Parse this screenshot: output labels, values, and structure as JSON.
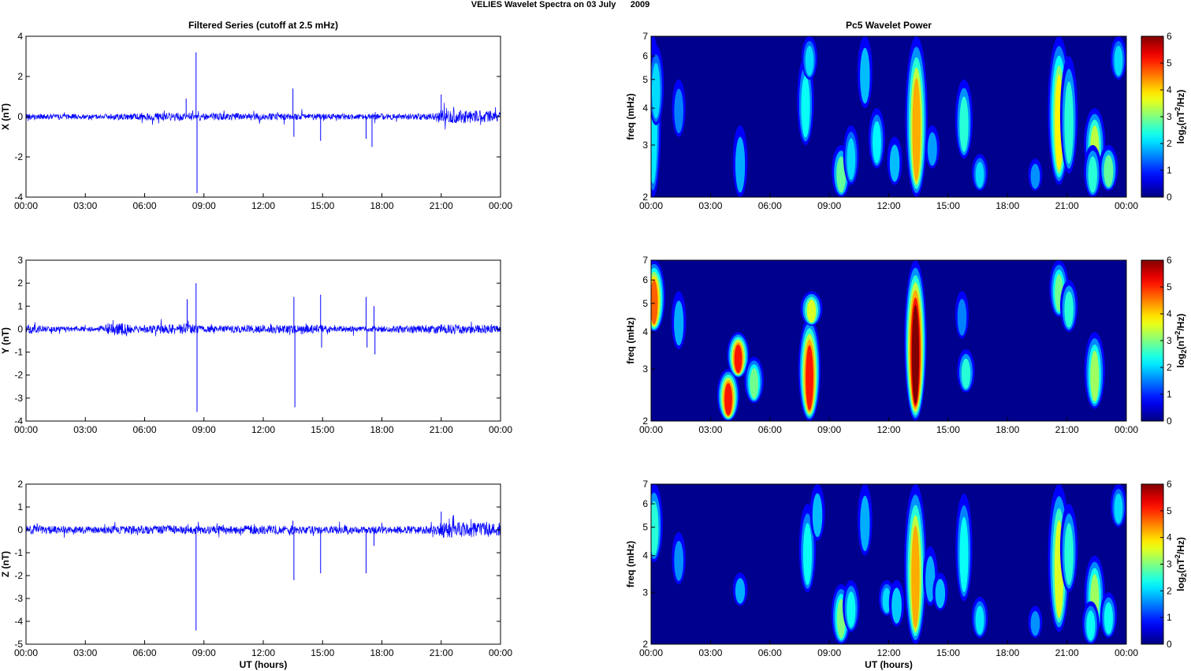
{
  "figure": {
    "suptitle": "VELIES Wavelet Spectra on 03 July      2009"
  },
  "colors": {
    "trace": "#0000ff",
    "axis": "#000000",
    "background": "#ffffff",
    "spectrogram_bg": "#00008f"
  },
  "chart_data": [
    {
      "id": "x-series",
      "type": "line",
      "title": "Filtered Series (cutoff at 2.5 mHz)",
      "xlabel": "",
      "ylabel": "X (nT)",
      "xticks": [
        "00:00",
        "03:00",
        "06:00",
        "09:00",
        "12:00",
        "15:00",
        "18:00",
        "21:00",
        "00:00"
      ],
      "xlim": [
        0,
        24
      ],
      "ylim": [
        -4,
        4
      ],
      "yticks": [
        "4",
        "2",
        "0",
        "-2",
        "-4"
      ],
      "noise": [
        [
          0,
          0.15
        ],
        [
          3.5,
          0.12
        ],
        [
          7,
          0.2
        ],
        [
          9,
          0.18
        ],
        [
          13,
          0.17
        ],
        [
          17,
          0.14
        ],
        [
          20.5,
          0.16
        ],
        [
          21,
          0.35
        ],
        [
          24,
          0.3
        ]
      ],
      "spikes": [
        [
          8.1,
          0.9
        ],
        [
          8.6,
          3.2
        ],
        [
          8.65,
          -3.8
        ],
        [
          13.5,
          1.4
        ],
        [
          13.55,
          -1.0
        ],
        [
          14.9,
          -1.2
        ],
        [
          17.2,
          -1.1
        ],
        [
          17.5,
          -1.5
        ],
        [
          21,
          1.1
        ],
        [
          24,
          -1.1
        ]
      ]
    },
    {
      "id": "y-series",
      "type": "line",
      "title": "",
      "xlabel": "",
      "ylabel": "Y (nT)",
      "xticks": [
        "00:00",
        "03:00",
        "06:00",
        "09:00",
        "12:00",
        "15:00",
        "18:00",
        "21:00",
        "00:00"
      ],
      "xlim": [
        0,
        24
      ],
      "ylim": [
        -4,
        3
      ],
      "yticks": [
        "3",
        "2",
        "1",
        "0",
        "-1",
        "-2",
        "-3",
        "-4"
      ],
      "noise": [
        [
          0,
          0.25
        ],
        [
          1,
          0.12
        ],
        [
          3.5,
          0.1
        ],
        [
          4.7,
          0.3
        ],
        [
          5.5,
          0.15
        ],
        [
          8,
          0.25
        ],
        [
          9,
          0.14
        ],
        [
          13.5,
          0.2
        ],
        [
          17,
          0.12
        ],
        [
          21,
          0.2
        ],
        [
          22,
          0.22
        ],
        [
          24,
          0.15
        ]
      ],
      "spikes": [
        [
          8.15,
          1.3
        ],
        [
          8.6,
          2.0
        ],
        [
          8.65,
          -3.6
        ],
        [
          13.55,
          1.4
        ],
        [
          13.6,
          -3.4
        ],
        [
          14.9,
          1.5
        ],
        [
          14.95,
          -0.8
        ],
        [
          17.2,
          1.4
        ],
        [
          17.25,
          -0.8
        ],
        [
          17.6,
          1.0
        ],
        [
          17.65,
          -1.1
        ]
      ]
    },
    {
      "id": "z-series",
      "type": "line",
      "title": "",
      "xlabel": "UT (hours)",
      "ylabel": "Z (nT)",
      "xticks": [
        "00:00",
        "03:00",
        "06:00",
        "09:00",
        "12:00",
        "15:00",
        "18:00",
        "21:00",
        "00:00"
      ],
      "xlim": [
        0,
        24
      ],
      "ylim": [
        -5,
        2
      ],
      "yticks": [
        "2",
        "1",
        "0",
        "-1",
        "-2",
        "-3",
        "-4",
        "-5"
      ],
      "noise": [
        [
          0,
          0.2
        ],
        [
          3.5,
          0.15
        ],
        [
          7,
          0.2
        ],
        [
          9,
          0.18
        ],
        [
          13,
          0.2
        ],
        [
          17,
          0.15
        ],
        [
          20.5,
          0.18
        ],
        [
          21,
          0.35
        ],
        [
          24,
          0.3
        ]
      ],
      "spikes": [
        [
          8.6,
          -4.4
        ],
        [
          13.5,
          0.4
        ],
        [
          13.55,
          -2.2
        ],
        [
          14.9,
          -1.9
        ],
        [
          17.2,
          -1.9
        ],
        [
          17.6,
          -0.7
        ],
        [
          21,
          0.8
        ],
        [
          24,
          -1.0
        ]
      ]
    },
    {
      "id": "x-wavelet",
      "type": "heatmap",
      "title": "Pc5 Wavelet Power",
      "xlabel": "",
      "ylabel": "freq (mHz)",
      "xticks": [
        "00:00",
        "03:00",
        "06:00",
        "09:00",
        "12:00",
        "15:00",
        "18:00",
        "21:00",
        "00:00"
      ],
      "xlim": [
        0,
        24
      ],
      "ylim": [
        2,
        7
      ],
      "yscale": "log",
      "yticks": [
        "7",
        "6",
        "5",
        "4",
        "3",
        "2"
      ],
      "colorbar_label": "log2(nT2/Hz)",
      "clim": [
        0,
        6
      ],
      "cticks": [
        "6",
        "5",
        "4",
        "3",
        "2",
        "1",
        "0"
      ],
      "blobs": [
        [
          0.1,
          2,
          7,
          1.6
        ],
        [
          0.25,
          3.5,
          6.5,
          1.5
        ],
        [
          1.4,
          3.2,
          5,
          0.9
        ],
        [
          4.5,
          2,
          3.5,
          1.2
        ],
        [
          7.8,
          3,
          6,
          1.8
        ],
        [
          8,
          5,
          7,
          1.5
        ],
        [
          9.6,
          2,
          3,
          2.4
        ],
        [
          10.1,
          2.2,
          3.5,
          1.5
        ],
        [
          10.8,
          4,
          7,
          1.3
        ],
        [
          11.4,
          2.5,
          4,
          1.7
        ],
        [
          12.3,
          2.2,
          3.2,
          1.3
        ],
        [
          13.4,
          2,
          7,
          4
        ],
        [
          14.2,
          2.5,
          3.5,
          1.1
        ],
        [
          15.8,
          2.7,
          5,
          2
        ],
        [
          16.6,
          2.1,
          2.8,
          1.5
        ],
        [
          19.4,
          2.1,
          2.7,
          1
        ],
        [
          20.6,
          2.2,
          7,
          3.5
        ],
        [
          21.1,
          2.4,
          6,
          2
        ],
        [
          22.4,
          2.3,
          4,
          3
        ],
        [
          22.3,
          2,
          3,
          2
        ],
        [
          23.1,
          2.1,
          3,
          2.4
        ],
        [
          23.6,
          5,
          7,
          1.5
        ]
      ]
    },
    {
      "id": "y-wavelet",
      "type": "heatmap",
      "title": "",
      "xlabel": "",
      "ylabel": "freq (mHz)",
      "xticks": [
        "00:00",
        "03:00",
        "06:00",
        "09:00",
        "12:00",
        "15:00",
        "18:00",
        "21:00",
        "00:00"
      ],
      "xlim": [
        0,
        24
      ],
      "ylim": [
        2,
        7
      ],
      "yscale": "log",
      "yticks": [
        "7",
        "6",
        "5",
        "4",
        "3",
        "2"
      ],
      "colorbar_label": "log2(nT2/Hz)",
      "clim": [
        0,
        6
      ],
      "cticks": [
        "6",
        "5",
        "4",
        "3",
        "2",
        "1",
        "0"
      ],
      "blobs": [
        [
          0.15,
          4,
          7,
          4.5
        ],
        [
          1.4,
          3.5,
          5.5,
          1.2
        ],
        [
          3.9,
          2,
          3,
          5
        ],
        [
          4.4,
          2.8,
          4,
          5
        ],
        [
          5.2,
          2.3,
          3.3,
          2.5
        ],
        [
          8,
          2,
          4.5,
          5
        ],
        [
          8.1,
          4.2,
          5.5,
          3.2
        ],
        [
          13.35,
          2,
          7,
          6
        ],
        [
          15.9,
          2.5,
          3.5,
          2
        ],
        [
          15.7,
          3.8,
          5.5,
          0.9
        ],
        [
          20.6,
          4.5,
          7,
          2.5
        ],
        [
          21.1,
          4,
          6,
          2
        ],
        [
          22.4,
          2.2,
          4,
          2.8
        ]
      ]
    },
    {
      "id": "z-wavelet",
      "type": "heatmap",
      "title": "",
      "xlabel": "UT (hours)",
      "ylabel": "freq (mHz)",
      "xticks": [
        "00:00",
        "03:00",
        "06:00",
        "09:00",
        "12:00",
        "15:00",
        "18:00",
        "21:00",
        "00:00"
      ],
      "xlim": [
        0,
        24
      ],
      "ylim": [
        2,
        7
      ],
      "yscale": "log",
      "yticks": [
        "7",
        "6",
        "5",
        "4",
        "3",
        "2"
      ],
      "colorbar_label": "log2(nT2/Hz)",
      "clim": [
        0,
        6
      ],
      "cticks": [
        "6",
        "5",
        "4",
        "3",
        "2",
        "1",
        "0"
      ],
      "blobs": [
        [
          0.15,
          3.8,
          7,
          2
        ],
        [
          1.4,
          3.2,
          4.8,
          1
        ],
        [
          4.5,
          2.7,
          3.5,
          1.2
        ],
        [
          7.9,
          3,
          6,
          1.8
        ],
        [
          8.4,
          4.5,
          7,
          1.3
        ],
        [
          9.6,
          2,
          3.2,
          2.6
        ],
        [
          10.1,
          2.2,
          3.3,
          1.8
        ],
        [
          10.8,
          4,
          7,
          1.2
        ],
        [
          11.9,
          2.5,
          3.3,
          1.5
        ],
        [
          12.4,
          2.3,
          3.3,
          1.4
        ],
        [
          13.35,
          2,
          7,
          4
        ],
        [
          14.1,
          2.7,
          4.3,
          1.2
        ],
        [
          14.6,
          2.6,
          3.5,
          1.3
        ],
        [
          15.8,
          2.8,
          6.5,
          1.8
        ],
        [
          16.6,
          2.1,
          2.9,
          1.6
        ],
        [
          19.4,
          2.1,
          2.7,
          1
        ],
        [
          20.6,
          2.2,
          7,
          3.2
        ],
        [
          21.1,
          3,
          6,
          2
        ],
        [
          22.4,
          2.2,
          4,
          2.8
        ],
        [
          22.2,
          2,
          2.8,
          1.8
        ],
        [
          23.1,
          2.1,
          3,
          1.8
        ],
        [
          23.6,
          5,
          7,
          1.5
        ]
      ]
    }
  ]
}
